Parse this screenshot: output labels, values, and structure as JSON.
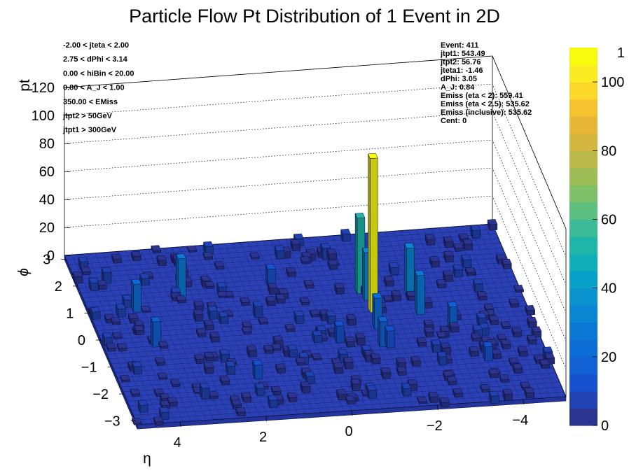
{
  "chart_data": {
    "type": "lego3d",
    "title": "Particle Flow Pt Distribution of 1 Event in 2D",
    "xlabel": "η",
    "ylabel": "ϕ",
    "zlabel": "pt",
    "xlim": [
      -5,
      5
    ],
    "ylim": [
      -3.14,
      3.14
    ],
    "zlim": [
      0,
      120
    ],
    "x_ticks": [
      "4",
      "2",
      "0",
      "−2",
      "−4"
    ],
    "x_tick_values": [
      4,
      2,
      0,
      -2,
      -4
    ],
    "y_ticks": [
      "−3",
      "−2",
      "−1",
      "0",
      "1",
      "2",
      "3"
    ],
    "y_tick_values": [
      -3,
      -2,
      -1,
      0,
      1,
      2,
      3
    ],
    "z_ticks": [
      "0",
      "20",
      "40",
      "60",
      "80",
      "100",
      "120"
    ],
    "z_tick_values": [
      0,
      20,
      40,
      60,
      80,
      100,
      120
    ],
    "colorbar": {
      "min": 0,
      "max": 110,
      "ticks": [
        "0",
        "20",
        "40",
        "60",
        "80",
        "100"
      ],
      "tick_values": [
        0,
        20,
        40,
        60,
        80,
        100
      ],
      "top_label": "1",
      "palette": [
        "#2c3491",
        "#2142b2",
        "#1652d0",
        "#1161d5",
        "#0d6dd7",
        "#0b78d6",
        "#0a87d2",
        "#0a93ce",
        "#07a0c8",
        "#0faeb8",
        "#1fb5a9",
        "#3bbc97",
        "#5cbf80",
        "#7dc068",
        "#9ebd57",
        "#bbb949",
        "#d4b53e",
        "#e8b636",
        "#f7c22f",
        "#fbd82a",
        "#fbec21",
        "#f9fb0e"
      ]
    },
    "towers": [
      {
        "eta": -1.35,
        "phi": 1.1,
        "pt": 54
      },
      {
        "eta": -1.35,
        "phi": -0.85,
        "pt": 18
      },
      {
        "eta": -1.45,
        "phi": 0.85,
        "pt": 34
      },
      {
        "eta": -1.46,
        "phi": 0.4,
        "pt": 110
      },
      {
        "eta": -1.4,
        "phi": -0.2,
        "pt": 22
      },
      {
        "eta": -1.5,
        "phi": -0.9,
        "pt": 12
      },
      {
        "eta": -2.45,
        "phi": 0.9,
        "pt": 34
      },
      {
        "eta": -2.5,
        "phi": 0.2,
        "pt": 28
      },
      {
        "eta": -3.1,
        "phi": -0.4,
        "pt": 16
      },
      {
        "eta": 2.75,
        "phi": 1.4,
        "pt": 28
      },
      {
        "eta": 3.9,
        "phi": 1.0,
        "pt": 20
      },
      {
        "eta": 3.8,
        "phi": -0.3,
        "pt": 18
      },
      {
        "eta": 0.6,
        "phi": 1.6,
        "pt": 12
      },
      {
        "eta": -0.4,
        "phi": -0.6,
        "pt": 12
      },
      {
        "eta": 1.8,
        "phi": -1.7,
        "pt": 10
      },
      {
        "eta": -3.6,
        "phi": -1.6,
        "pt": 10
      },
      {
        "eta": 4.3,
        "phi": 2.1,
        "pt": 8
      },
      {
        "eta": 1.2,
        "phi": 0.5,
        "pt": 8
      },
      {
        "eta": -0.9,
        "phi": 2.4,
        "pt": 8
      },
      {
        "eta": 3.2,
        "phi": -2.3,
        "pt": 8
      }
    ]
  },
  "annotations": {
    "cuts": [
      "-2.00 < jteta < 2.00",
      "2.75 < dPhi < 3.14",
      "0.00 < hiBin < 20.00",
      "0.80 < A_J < 1.00",
      "350.00 < EMiss",
      "jtpt2 > 50GeV",
      "jtpt1 > 300GeV"
    ],
    "event_info": [
      "Event: 411",
      "jtpt1: 543.49",
      "jtpt2: 56.76",
      "jteta1: -1.46",
      "dPhi: 3.05",
      "A_J: 0.84",
      "Emiss (eta < 2): 559.41",
      "Emiss (eta < 2.5): 535.62",
      "Emiss (inclusive): 535.62",
      "Cent: 0"
    ]
  }
}
